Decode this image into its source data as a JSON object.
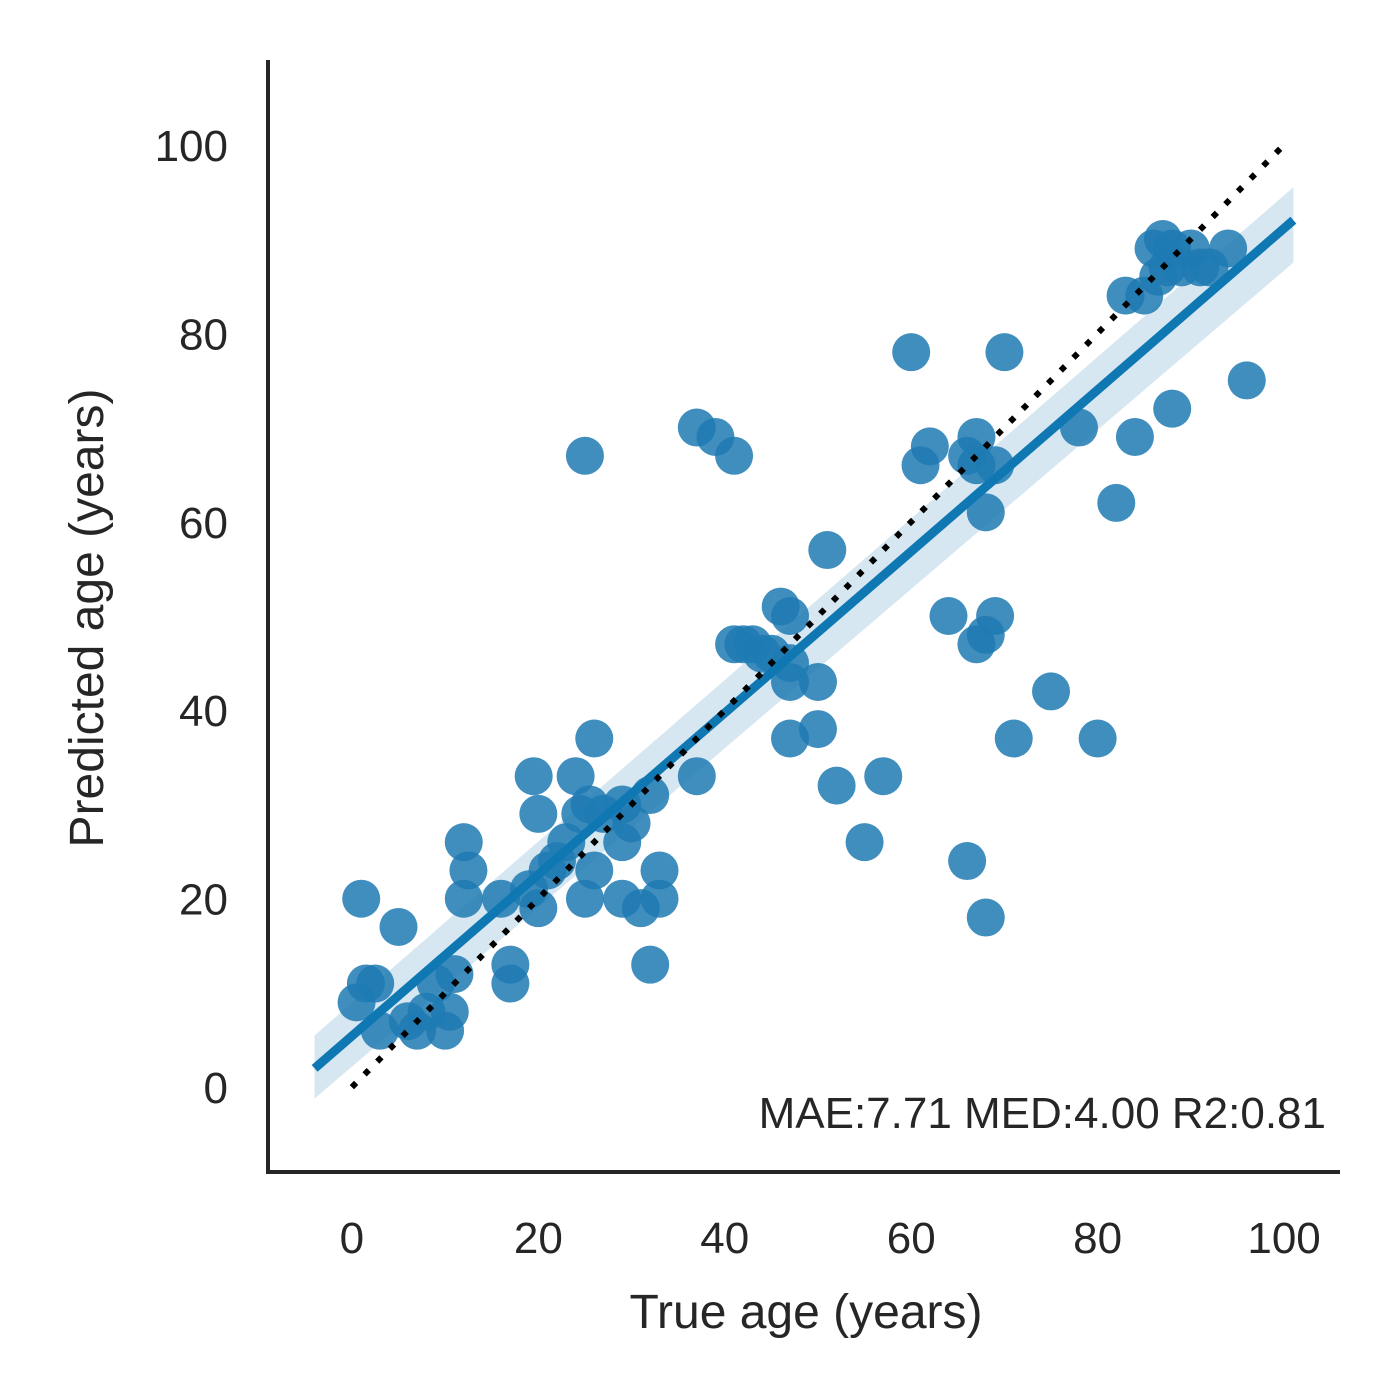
{
  "chart_data": {
    "type": "scatter",
    "xlabel": "True age (years)",
    "ylabel": "Predicted age (years)",
    "xlim": [
      -9,
      106
    ],
    "ylim": [
      -9,
      109
    ],
    "xticks": [
      0,
      20,
      40,
      60,
      80,
      100
    ],
    "yticks": [
      0,
      20,
      40,
      60,
      80,
      100
    ],
    "annotation": "MAE:7.71 MED:4.00 R2:0.81",
    "grid": false,
    "colors": {
      "points": "#1f7ab3",
      "fit_line": "#0f78b3",
      "ci_band": "#cfe3f0",
      "identity_line": "#000000",
      "axis": "#262626"
    },
    "fit_line": {
      "x": [
        -4,
        101
      ],
      "y": [
        2,
        92
      ]
    },
    "fit_ci": {
      "x": [
        -4,
        101
      ],
      "upper": [
        5.5,
        95.5
      ],
      "lower": [
        -1.2,
        87.5
      ]
    },
    "identity_line": {
      "x": [
        0,
        100
      ],
      "y": [
        0,
        100
      ]
    },
    "points": [
      [
        1,
        20
      ],
      [
        0.5,
        9
      ],
      [
        1.5,
        11
      ],
      [
        2.5,
        11
      ],
      [
        3,
        6
      ],
      [
        5,
        17
      ],
      [
        6,
        7
      ],
      [
        7,
        6
      ],
      [
        8,
        8
      ],
      [
        9,
        11
      ],
      [
        10,
        6
      ],
      [
        10.5,
        8
      ],
      [
        11,
        12
      ],
      [
        12,
        26
      ],
      [
        12,
        20
      ],
      [
        12.5,
        23
      ],
      [
        16,
        20
      ],
      [
        17,
        13
      ],
      [
        17,
        11
      ],
      [
        19,
        21
      ],
      [
        19.5,
        33
      ],
      [
        20,
        19
      ],
      [
        20,
        29
      ],
      [
        21,
        23
      ],
      [
        22,
        24
      ],
      [
        23,
        26
      ],
      [
        24,
        33
      ],
      [
        24.5,
        29
      ],
      [
        25,
        67
      ],
      [
        25,
        20
      ],
      [
        25.5,
        30
      ],
      [
        26,
        23
      ],
      [
        26,
        37
      ],
      [
        27,
        29
      ],
      [
        29,
        30
      ],
      [
        29,
        26
      ],
      [
        29,
        20
      ],
      [
        30,
        28
      ],
      [
        31,
        19
      ],
      [
        32,
        13
      ],
      [
        32,
        31
      ],
      [
        33,
        23
      ],
      [
        33,
        20
      ],
      [
        37,
        33
      ],
      [
        37,
        70
      ],
      [
        39,
        69
      ],
      [
        41,
        67
      ],
      [
        41,
        47
      ],
      [
        42,
        47
      ],
      [
        43,
        47
      ],
      [
        44,
        46
      ],
      [
        45,
        46
      ],
      [
        46,
        51
      ],
      [
        47,
        50
      ],
      [
        47,
        45
      ],
      [
        47,
        43
      ],
      [
        47,
        37
      ],
      [
        50,
        43
      ],
      [
        50,
        38
      ],
      [
        51,
        57
      ],
      [
        52,
        32
      ],
      [
        55,
        26
      ],
      [
        57,
        33
      ],
      [
        60,
        78
      ],
      [
        61,
        66
      ],
      [
        62,
        68
      ],
      [
        64,
        50
      ],
      [
        66,
        24
      ],
      [
        66,
        67
      ],
      [
        67,
        69
      ],
      [
        67,
        47
      ],
      [
        67,
        66
      ],
      [
        68,
        48
      ],
      [
        68,
        61
      ],
      [
        68,
        18
      ],
      [
        69,
        50
      ],
      [
        69,
        66
      ],
      [
        70,
        78
      ],
      [
        71,
        37
      ],
      [
        75,
        42
      ],
      [
        78,
        70
      ],
      [
        80,
        37
      ],
      [
        82,
        62
      ],
      [
        83,
        84
      ],
      [
        84,
        69
      ],
      [
        85,
        84
      ],
      [
        86,
        89
      ],
      [
        86.5,
        86
      ],
      [
        87,
        90
      ],
      [
        87.5,
        87
      ],
      [
        88,
        89
      ],
      [
        88,
        72
      ],
      [
        89,
        87
      ],
      [
        90,
        89
      ],
      [
        91,
        87
      ],
      [
        92,
        87
      ],
      [
        94,
        89
      ],
      [
        96,
        75
      ]
    ]
  }
}
